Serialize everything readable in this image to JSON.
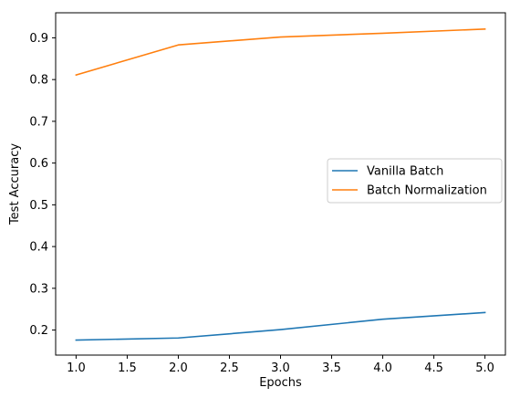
{
  "chart_data": {
    "type": "line",
    "title": "",
    "xlabel": "Epochs",
    "ylabel": "Test Accuracy",
    "x": [
      1.0,
      2.0,
      3.0,
      4.0,
      5.0
    ],
    "xlim": [
      0.8,
      5.2
    ],
    "ylim": [
      0.14,
      0.96
    ],
    "xticks": [
      1.0,
      1.5,
      2.0,
      2.5,
      3.0,
      3.5,
      4.0,
      4.5,
      5.0
    ],
    "xtick_labels": [
      "1.0",
      "1.5",
      "2.0",
      "2.5",
      "3.0",
      "3.5",
      "4.0",
      "4.5",
      "5.0"
    ],
    "yticks": [
      0.2,
      0.3,
      0.4,
      0.5,
      0.6,
      0.7,
      0.8,
      0.9
    ],
    "ytick_labels": [
      "0.2",
      "0.3",
      "0.4",
      "0.5",
      "0.6",
      "0.7",
      "0.8",
      "0.9"
    ],
    "grid": false,
    "legend_position": "center-right",
    "series": [
      {
        "name": "Vanilla Batch",
        "color": "#1f77b4",
        "values": [
          0.176,
          0.181,
          0.201,
          0.226,
          0.242
        ]
      },
      {
        "name": "Batch Normalization",
        "color": "#ff7f0e",
        "values": [
          0.811,
          0.883,
          0.902,
          0.911,
          0.921
        ]
      }
    ]
  }
}
